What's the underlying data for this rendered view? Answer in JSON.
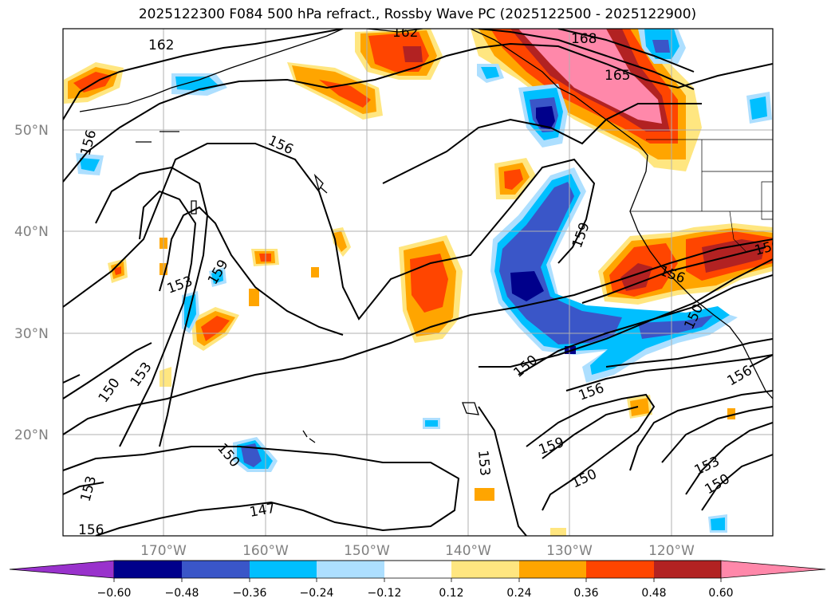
{
  "title": "2025122300 F084 500 hPa refract., Rossby Wave PC (2025122500 - 2025122900)",
  "lat_labels": [
    {
      "lat": 50,
      "label": "50°N"
    },
    {
      "lat": 40,
      "label": "40°N"
    },
    {
      "lat": 30,
      "label": "30°N"
    },
    {
      "lat": 20,
      "label": "20°N"
    }
  ],
  "lon_labels": [
    {
      "lon": -170,
      "label": "170°W"
    },
    {
      "lon": -160,
      "label": "160°W"
    },
    {
      "lon": -150,
      "label": "150°W"
    },
    {
      "lon": -140,
      "label": "140°W"
    },
    {
      "lon": -130,
      "label": "130°W"
    },
    {
      "lon": -120,
      "label": "120°W"
    }
  ],
  "contour_labels": [
    "162",
    "162",
    "168",
    "165",
    "156",
    "156",
    "153",
    "159",
    "153",
    "150",
    "150",
    "159",
    "156",
    "150",
    "147",
    "156",
    "153",
    "159",
    "150",
    "156",
    "153",
    "150",
    "156",
    "156",
    "150",
    "153",
    "159"
  ],
  "colorbar": {
    "ticks": [
      "−0.60",
      "−0.48",
      "−0.36",
      "−0.24",
      "−0.12",
      "0.12",
      "0.24",
      "0.36",
      "0.48",
      "0.60"
    ],
    "colors": {
      "under": "#9932cc",
      "n060": "#00008b",
      "n048": "#3a56c8",
      "n036": "#00bfff",
      "n024": "#addfff",
      "zero": "#ffffff",
      "p012": "#ffe680",
      "p024": "#ffa500",
      "p036": "#ff4500",
      "p048": "#b22222",
      "over": "#ff88aa"
    }
  }
}
